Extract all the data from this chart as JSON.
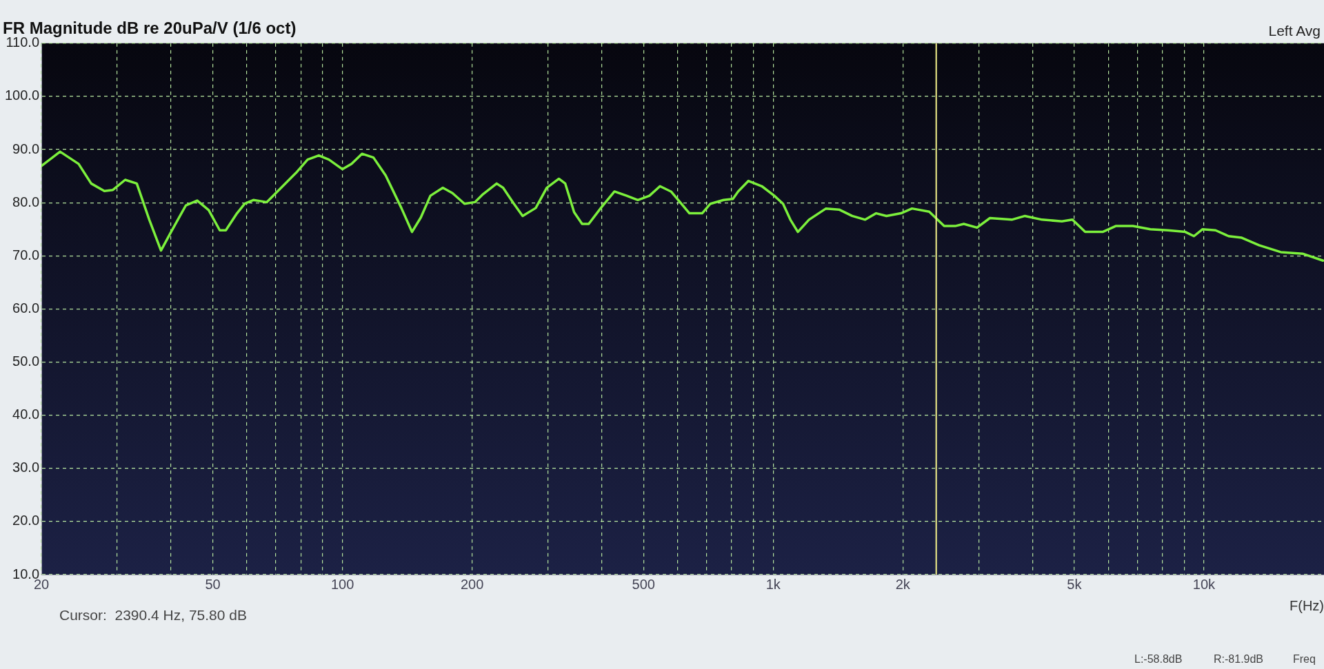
{
  "chart_data": {
    "type": "line",
    "title": "FR Magnitude dB re 20uPa/V (1/6 oct)",
    "xlabel": "F(Hz)",
    "annotations": [
      "Left Avg",
      "Cursor:  2390.4 Hz, 75.80 dB",
      "L:-58.8dB",
      "R:-81.9dB",
      "Freq"
    ],
    "log": "x",
    "grid": true,
    "legend": false,
    "marker": "none",
    "line_style": "solid",
    "xlim": [
      20,
      19000
    ],
    "ylim": [
      10,
      110
    ],
    "xticks": [
      20,
      {
        "value": 30,
        "label": null
      },
      {
        "value": 40,
        "label": null
      },
      50,
      {
        "value": 60,
        "label": null
      },
      {
        "value": 70,
        "label": null
      },
      {
        "value": 80,
        "label": null
      },
      {
        "value": 90,
        "label": null
      },
      100,
      200,
      {
        "value": 300,
        "label": null
      },
      {
        "value": 400,
        "label": null
      },
      500,
      {
        "value": 600,
        "label": null
      },
      {
        "value": 700,
        "label": null
      },
      {
        "value": 800,
        "label": null
      },
      {
        "value": 900,
        "label": null
      },
      {
        "value": 1000,
        "label": "1k"
      },
      {
        "value": 2000,
        "label": "2k"
      },
      {
        "value": 3000,
        "label": null
      },
      {
        "value": 4000,
        "label": null
      },
      {
        "value": 5000,
        "label": "5k"
      },
      {
        "value": 6000,
        "label": null
      },
      {
        "value": 7000,
        "label": null
      },
      {
        "value": 8000,
        "label": null
      },
      {
        "value": 9000,
        "label": null
      },
      {
        "value": 10000,
        "label": "10k"
      }
    ],
    "yticks": [
      {
        "value": 10,
        "label": "10.0"
      },
      {
        "value": 20,
        "label": "20.0"
      },
      {
        "value": 30,
        "label": "30.0"
      },
      {
        "value": 40,
        "label": "40.0"
      },
      {
        "value": 50,
        "label": "50.0"
      },
      {
        "value": 60,
        "label": "60.0"
      },
      {
        "value": 70,
        "label": "70.0"
      },
      {
        "value": 80,
        "label": "80.0"
      },
      {
        "value": 90,
        "label": "90.0"
      },
      {
        "value": 100,
        "label": "100.0"
      },
      {
        "value": 110,
        "label": "110.0"
      }
    ],
    "ref_lines": [
      {
        "axis": "x",
        "value": 2390.4,
        "color": "#f2f08a"
      }
    ],
    "x": [
      20,
      22.1,
      24.4,
      26.1,
      28,
      29.3,
      31.3,
      33.3,
      35.6,
      37.9,
      40,
      43.3,
      46,
      48.9,
      51.9,
      53.6,
      56.9,
      59.3,
      62.1,
      66.7,
      71.2,
      78.4,
      83,
      88.1,
      93,
      100,
      105,
      111,
      118,
      126,
      137,
      145,
      152,
      160,
      171,
      180,
      192,
      203,
      212,
      228,
      236,
      250,
      262,
      281,
      298,
      318,
      329,
      345,
      360,
      373,
      398,
      428,
      457,
      485,
      516,
      546,
      579,
      612,
      639,
      684,
      715,
      767,
      806,
      829,
      876,
      941,
      1006,
      1054,
      1096,
      1141,
      1211,
      1326,
      1422,
      1525,
      1635,
      1734,
      1832,
      1980,
      2100,
      2303,
      2494,
      2645,
      2770,
      2973,
      3185,
      3580,
      3841,
      4210,
      4680,
      4950,
      5300,
      5820,
      6240,
      6840,
      7510,
      8250,
      9050,
      9480,
      9930,
      10640,
      11410,
      12240,
      13420,
      15080,
      16940,
      18900
    ],
    "series": [
      {
        "color": "#7cf03c",
        "values": [
          86.9,
          89.6,
          87.3,
          83.6,
          82.2,
          82.4,
          84.3,
          83.6,
          76.8,
          71,
          74.5,
          79.5,
          80.4,
          78.6,
          74.8,
          74.8,
          78,
          79.8,
          80.5,
          80.1,
          82.4,
          85.8,
          88.1,
          88.9,
          88.1,
          86.3,
          87.3,
          89.2,
          88.5,
          85.1,
          79,
          74.5,
          77.2,
          81.3,
          82.8,
          81.8,
          79.8,
          80.1,
          81.6,
          83.6,
          82.8,
          79.8,
          77.5,
          79,
          82.8,
          84.5,
          83.6,
          78.2,
          76,
          76,
          79,
          82.1,
          81.3,
          80.5,
          81.3,
          83.1,
          82.1,
          79.8,
          78,
          78,
          79.8,
          80.5,
          80.7,
          82.1,
          84.1,
          83.1,
          81.3,
          79.8,
          76.8,
          74.5,
          76.8,
          78.9,
          78.7,
          77.5,
          76.8,
          78,
          77.5,
          78,
          78.9,
          78.3,
          75.6,
          75.6,
          76,
          75.3,
          77.1,
          76.8,
          77.5,
          76.8,
          76.5,
          76.8,
          74.5,
          74.5,
          75.6,
          75.6,
          75,
          74.8,
          74.5,
          73.7,
          75,
          74.8,
          73.7,
          73.4,
          72,
          70.7,
          70.4,
          69.1
        ]
      }
    ]
  }
}
